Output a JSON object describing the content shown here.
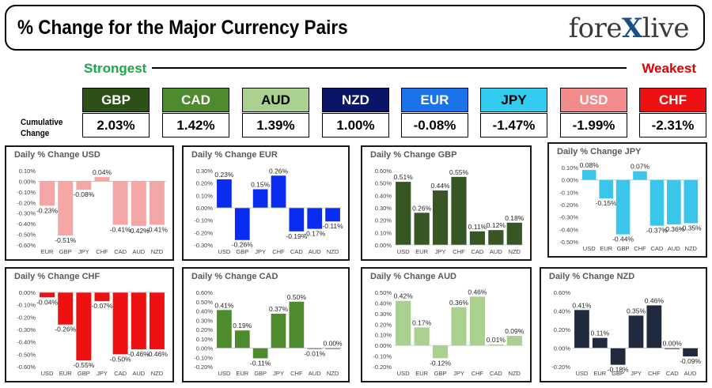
{
  "header": {
    "title": "% Change for the Major Currency Pairs",
    "logo_text": "forexlive"
  },
  "legend": {
    "strongest": "Strongest",
    "weakest": "Weakest",
    "cumulative_label": "Cumulative Change"
  },
  "currencies": [
    {
      "code": "GBP",
      "value": "2.03%",
      "bg": "#2d5016",
      "fg": "#ffffff"
    },
    {
      "code": "CAD",
      "value": "1.42%",
      "bg": "#4e8a2e",
      "fg": "#ffffff"
    },
    {
      "code": "AUD",
      "value": "1.39%",
      "bg": "#a9d08e",
      "fg": "#000000"
    },
    {
      "code": "NZD",
      "value": "1.00%",
      "bg": "#0a1566",
      "fg": "#ffffff"
    },
    {
      "code": "EUR",
      "value": "-0.08%",
      "bg": "#1a73e8",
      "fg": "#ffffff"
    },
    {
      "code": "JPY",
      "value": "-1.47%",
      "bg": "#33ccf0",
      "fg": "#000000"
    },
    {
      "code": "USD",
      "value": "-1.99%",
      "bg": "#f28b8b",
      "fg": "#ffffff"
    },
    {
      "code": "CHF",
      "value": "-2.31%",
      "bg": "#ee1111",
      "fg": "#ffffff"
    }
  ],
  "chart_data": [
    {
      "type": "bar",
      "title": "Daily % Change USD",
      "color": "#f4a6a6",
      "categories": [
        "EUR",
        "GBP",
        "JPY",
        "CHF",
        "CAD",
        "AUD",
        "NZD"
      ],
      "values": [
        -0.23,
        -0.51,
        -0.08,
        0.04,
        -0.41,
        -0.42,
        -0.41
      ],
      "labels": [
        "-0.23%",
        "-0.51%",
        "-0.08%",
        "0.04%",
        "-0.41%",
        "-0.42%",
        "-0.41%"
      ],
      "ylim": [
        -0.6,
        0.1
      ],
      "ticks": [
        0.1,
        0,
        -0.1,
        -0.2,
        -0.3,
        -0.4,
        -0.5,
        -0.6
      ],
      "tick_labels": [
        "0.10%",
        "0.00%",
        "-0.10%",
        "-0.20%",
        "-0.30%",
        "-0.40%",
        "-0.50%",
        "-0.60%"
      ]
    },
    {
      "type": "bar",
      "title": "Daily % Change EUR",
      "color": "#0a2cf0",
      "categories": [
        "USD",
        "GBP",
        "JPY",
        "CHF",
        "CAD",
        "AUD",
        "NZD"
      ],
      "values": [
        0.23,
        -0.26,
        0.15,
        0.26,
        -0.19,
        -0.17,
        -0.11
      ],
      "labels": [
        "0.23%",
        "-0.26%",
        "0.15%",
        "0.26%",
        "-0.19%",
        "-0.17%",
        "-0.11%"
      ],
      "ylim": [
        -0.3,
        0.3
      ],
      "ticks": [
        0.3,
        0.2,
        0.1,
        0,
        -0.1,
        -0.2,
        -0.3
      ],
      "tick_labels": [
        "0.30%",
        "0.20%",
        "0.10%",
        "0.00%",
        "-0.10%",
        "-0.20%",
        "-0.30%"
      ]
    },
    {
      "type": "bar",
      "title": "Daily % Change GBP",
      "color": "#375623",
      "categories": [
        "USD",
        "EUR",
        "JPY",
        "CHF",
        "CAD",
        "AUD",
        "NZD"
      ],
      "values": [
        0.51,
        0.26,
        0.44,
        0.55,
        0.11,
        0.12,
        0.18
      ],
      "labels": [
        "0.51%",
        "0.26%",
        "0.44%",
        "0.55%",
        "0.11%",
        "0.12%",
        "0.18%"
      ],
      "ylim": [
        0,
        0.6
      ],
      "ticks": [
        0.6,
        0.5,
        0.4,
        0.3,
        0.2,
        0.1,
        0
      ],
      "tick_labels": [
        "0.60%",
        "0.50%",
        "0.40%",
        "0.30%",
        "0.20%",
        "0.10%",
        "0.00%"
      ]
    },
    {
      "type": "bar",
      "title": "Daily % Change JPY",
      "color": "#39c6ea",
      "categories": [
        "USD",
        "EUR",
        "GBP",
        "CHF",
        "CAD",
        "AUD",
        "NZD"
      ],
      "values": [
        0.08,
        -0.15,
        -0.44,
        0.07,
        -0.37,
        -0.36,
        -0.35
      ],
      "labels": [
        "0.08%",
        "-0.15%",
        "-0.44%",
        "0.07%",
        "-0.37%",
        "-0.36%",
        "-0.35%"
      ],
      "ylim": [
        -0.5,
        0.1
      ],
      "ticks": [
        0.1,
        0,
        -0.1,
        -0.2,
        -0.3,
        -0.4,
        -0.5
      ],
      "tick_labels": [
        "0.10%",
        "0.00%",
        "-0.10%",
        "-0.20%",
        "-0.30%",
        "-0.40%",
        "-0.50%"
      ]
    },
    {
      "type": "bar",
      "title": "Daily % Change CHF",
      "color": "#ee1111",
      "categories": [
        "USD",
        "EUR",
        "GBP",
        "JPY",
        "CAD",
        "AUD",
        "NZD"
      ],
      "values": [
        -0.04,
        -0.26,
        -0.55,
        -0.07,
        -0.5,
        -0.46,
        -0.46
      ],
      "labels": [
        "-0.04%",
        "-0.26%",
        "-0.55%",
        "-0.07%",
        "-0.50%",
        "-0.46%",
        "-0.46%"
      ],
      "ylim": [
        -0.6,
        0
      ],
      "ticks": [
        0,
        -0.1,
        -0.2,
        -0.3,
        -0.4,
        -0.5,
        -0.6
      ],
      "tick_labels": [
        "0.00%",
        "-0.10%",
        "-0.20%",
        "-0.30%",
        "-0.40%",
        "-0.50%",
        "-0.60%"
      ]
    },
    {
      "type": "bar",
      "title": "Daily % Change CAD",
      "color": "#4e8a2e",
      "categories": [
        "USD",
        "EUR",
        "GBP",
        "JPY",
        "CHF",
        "AUD",
        "NZD"
      ],
      "values": [
        0.41,
        0.19,
        -0.11,
        0.37,
        0.5,
        -0.01,
        0.0
      ],
      "labels": [
        "0.41%",
        "0.19%",
        "-0.11%",
        "0.37%",
        "0.50%",
        "-0.01%",
        "0.00%"
      ],
      "ylim": [
        -0.2,
        0.6
      ],
      "ticks": [
        0.6,
        0.5,
        0.4,
        0.3,
        0.2,
        0.1,
        0,
        -0.1,
        -0.2
      ],
      "tick_labels": [
        "0.60%",
        "0.50%",
        "0.40%",
        "0.30%",
        "0.20%",
        "0.10%",
        "0.00%",
        "-0.10%",
        "-0.20%"
      ]
    },
    {
      "type": "bar",
      "title": "Daily % Change AUD",
      "color": "#a9d08e",
      "categories": [
        "USD",
        "EUR",
        "GBP",
        "JPY",
        "CHF",
        "CAD",
        "NZD"
      ],
      "values": [
        0.42,
        0.17,
        -0.12,
        0.36,
        0.46,
        0.01,
        0.09
      ],
      "labels": [
        "0.42%",
        "0.17%",
        "-0.12%",
        "0.36%",
        "0.46%",
        "0.01%",
        "0.09%"
      ],
      "ylim": [
        -0.2,
        0.5
      ],
      "ticks": [
        0.5,
        0.4,
        0.3,
        0.2,
        0.1,
        0,
        -0.1,
        -0.2
      ],
      "tick_labels": [
        "0.50%",
        "0.40%",
        "0.30%",
        "0.20%",
        "0.10%",
        "0.00%",
        "-0.10%",
        "-0.20%"
      ]
    },
    {
      "type": "bar",
      "title": "Daily % Change NZD",
      "color": "#1f2a3c",
      "categories": [
        "USD",
        "EUR",
        "GBP",
        "JPY",
        "CHF",
        "CAD",
        "AUD"
      ],
      "values": [
        0.41,
        0.11,
        -0.18,
        0.35,
        0.46,
        0.0,
        -0.09
      ],
      "labels": [
        "0.41%",
        "0.11%",
        "-0.18%",
        "0.35%",
        "0.46%",
        "0.00%",
        "-0.09%"
      ],
      "ylim": [
        -0.2,
        0.6
      ],
      "ticks": [
        0.6,
        0.4,
        0.2,
        0,
        -0.2
      ],
      "tick_labels": [
        "0.60%",
        "0.40%",
        "0.20%",
        "0.00%",
        "-0.20%"
      ]
    }
  ]
}
